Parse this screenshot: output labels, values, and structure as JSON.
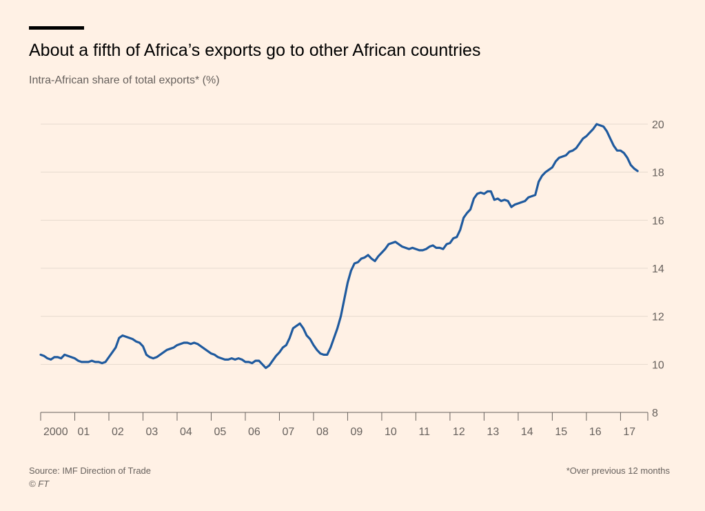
{
  "header": {
    "title": "About a fifth of Africa’s exports go to other African countries",
    "subtitle": "Intra-African share of total exports* (%)"
  },
  "footer": {
    "source": "Source: IMF Direction of Trade",
    "copyright": "© FT",
    "footnote": "*Over previous 12 months"
  },
  "colors": {
    "background": "#fff1e5",
    "line": "#1f5a9e",
    "grid": "#e6d9ce",
    "axis": "#66605c"
  },
  "chart_data": {
    "type": "line",
    "title": "About a fifth of Africa’s exports go to other African countries",
    "ylabel": "Intra-African share of total exports* (%)",
    "xlabel": "",
    "ylim": [
      8,
      20
    ],
    "xlim": [
      2000,
      2017.8
    ],
    "yticks": [
      8,
      10,
      12,
      14,
      16,
      18,
      20
    ],
    "xtick_labels": [
      {
        "x": 2000,
        "label": "2000"
      },
      {
        "x": 2001,
        "label": "01"
      },
      {
        "x": 2002,
        "label": "02"
      },
      {
        "x": 2003,
        "label": "03"
      },
      {
        "x": 2004,
        "label": "04"
      },
      {
        "x": 2005,
        "label": "05"
      },
      {
        "x": 2006,
        "label": "06"
      },
      {
        "x": 2007,
        "label": "07"
      },
      {
        "x": 2008,
        "label": "08"
      },
      {
        "x": 2009,
        "label": "09"
      },
      {
        "x": 2010,
        "label": "10"
      },
      {
        "x": 2011,
        "label": "11"
      },
      {
        "x": 2012,
        "label": "12"
      },
      {
        "x": 2013,
        "label": "13"
      },
      {
        "x": 2014,
        "label": "14"
      },
      {
        "x": 2015,
        "label": "15"
      },
      {
        "x": 2016,
        "label": "16"
      },
      {
        "x": 2017,
        "label": "17"
      }
    ],
    "grid": true,
    "y_axis_position": "right",
    "series": [
      {
        "values": [
          [
            2000.0,
            10.4
          ],
          [
            2000.1,
            10.35
          ],
          [
            2000.2,
            10.25
          ],
          [
            2000.3,
            10.2
          ],
          [
            2000.4,
            10.3
          ],
          [
            2000.5,
            10.3
          ],
          [
            2000.6,
            10.25
          ],
          [
            2000.7,
            10.4
          ],
          [
            2000.8,
            10.35
          ],
          [
            2000.9,
            10.3
          ],
          [
            2001.0,
            10.25
          ],
          [
            2001.1,
            10.15
          ],
          [
            2001.2,
            10.1
          ],
          [
            2001.3,
            10.1
          ],
          [
            2001.4,
            10.1
          ],
          [
            2001.5,
            10.15
          ],
          [
            2001.6,
            10.1
          ],
          [
            2001.7,
            10.1
          ],
          [
            2001.8,
            10.05
          ],
          [
            2001.9,
            10.1
          ],
          [
            2002.0,
            10.3
          ],
          [
            2002.1,
            10.5
          ],
          [
            2002.2,
            10.7
          ],
          [
            2002.3,
            11.1
          ],
          [
            2002.4,
            11.2
          ],
          [
            2002.5,
            11.15
          ],
          [
            2002.6,
            11.1
          ],
          [
            2002.7,
            11.05
          ],
          [
            2002.8,
            10.95
          ],
          [
            2002.9,
            10.9
          ],
          [
            2003.0,
            10.75
          ],
          [
            2003.1,
            10.4
          ],
          [
            2003.2,
            10.3
          ],
          [
            2003.3,
            10.25
          ],
          [
            2003.4,
            10.3
          ],
          [
            2003.5,
            10.4
          ],
          [
            2003.6,
            10.5
          ],
          [
            2003.7,
            10.6
          ],
          [
            2003.8,
            10.65
          ],
          [
            2003.9,
            10.7
          ],
          [
            2004.0,
            10.8
          ],
          [
            2004.1,
            10.85
          ],
          [
            2004.2,
            10.9
          ],
          [
            2004.3,
            10.9
          ],
          [
            2004.4,
            10.85
          ],
          [
            2004.5,
            10.9
          ],
          [
            2004.6,
            10.85
          ],
          [
            2004.7,
            10.75
          ],
          [
            2004.8,
            10.65
          ],
          [
            2004.9,
            10.55
          ],
          [
            2005.0,
            10.45
          ],
          [
            2005.1,
            10.4
          ],
          [
            2005.2,
            10.3
          ],
          [
            2005.3,
            10.25
          ],
          [
            2005.4,
            10.2
          ],
          [
            2005.5,
            10.2
          ],
          [
            2005.6,
            10.25
          ],
          [
            2005.7,
            10.2
          ],
          [
            2005.8,
            10.25
          ],
          [
            2005.9,
            10.2
          ],
          [
            2006.0,
            10.1
          ],
          [
            2006.1,
            10.1
          ],
          [
            2006.2,
            10.05
          ],
          [
            2006.3,
            10.15
          ],
          [
            2006.4,
            10.15
          ],
          [
            2006.5,
            10.0
          ],
          [
            2006.6,
            9.85
          ],
          [
            2006.7,
            9.95
          ],
          [
            2006.8,
            10.15
          ],
          [
            2006.9,
            10.35
          ],
          [
            2007.0,
            10.5
          ],
          [
            2007.1,
            10.7
          ],
          [
            2007.2,
            10.8
          ],
          [
            2007.3,
            11.1
          ],
          [
            2007.4,
            11.5
          ],
          [
            2007.5,
            11.6
          ],
          [
            2007.6,
            11.7
          ],
          [
            2007.7,
            11.5
          ],
          [
            2007.8,
            11.2
          ],
          [
            2007.9,
            11.05
          ],
          [
            2008.0,
            10.8
          ],
          [
            2008.1,
            10.6
          ],
          [
            2008.2,
            10.45
          ],
          [
            2008.3,
            10.4
          ],
          [
            2008.4,
            10.4
          ],
          [
            2008.5,
            10.7
          ],
          [
            2008.6,
            11.1
          ],
          [
            2008.7,
            11.5
          ],
          [
            2008.8,
            12.0
          ],
          [
            2008.9,
            12.7
          ],
          [
            2009.0,
            13.4
          ],
          [
            2009.1,
            13.9
          ],
          [
            2009.2,
            14.2
          ],
          [
            2009.3,
            14.25
          ],
          [
            2009.4,
            14.4
          ],
          [
            2009.5,
            14.45
          ],
          [
            2009.6,
            14.55
          ],
          [
            2009.7,
            14.4
          ],
          [
            2009.8,
            14.3
          ],
          [
            2009.9,
            14.5
          ],
          [
            2010.0,
            14.65
          ],
          [
            2010.1,
            14.8
          ],
          [
            2010.2,
            15.0
          ],
          [
            2010.3,
            15.05
          ],
          [
            2010.4,
            15.1
          ],
          [
            2010.5,
            15.0
          ],
          [
            2010.6,
            14.9
          ],
          [
            2010.7,
            14.85
          ],
          [
            2010.8,
            14.8
          ],
          [
            2010.9,
            14.85
          ],
          [
            2011.0,
            14.8
          ],
          [
            2011.1,
            14.75
          ],
          [
            2011.2,
            14.75
          ],
          [
            2011.3,
            14.8
          ],
          [
            2011.4,
            14.9
          ],
          [
            2011.5,
            14.95
          ],
          [
            2011.6,
            14.85
          ],
          [
            2011.7,
            14.85
          ],
          [
            2011.8,
            14.8
          ],
          [
            2011.9,
            15.0
          ],
          [
            2012.0,
            15.05
          ],
          [
            2012.1,
            15.25
          ],
          [
            2012.2,
            15.3
          ],
          [
            2012.3,
            15.6
          ],
          [
            2012.4,
            16.1
          ],
          [
            2012.5,
            16.3
          ],
          [
            2012.6,
            16.45
          ],
          [
            2012.7,
            16.9
          ],
          [
            2012.8,
            17.1
          ],
          [
            2012.9,
            17.15
          ],
          [
            2013.0,
            17.1
          ],
          [
            2013.1,
            17.2
          ],
          [
            2013.2,
            17.2
          ],
          [
            2013.3,
            16.85
          ],
          [
            2013.4,
            16.9
          ],
          [
            2013.5,
            16.8
          ],
          [
            2013.6,
            16.85
          ],
          [
            2013.7,
            16.8
          ],
          [
            2013.8,
            16.55
          ],
          [
            2013.9,
            16.65
          ],
          [
            2014.0,
            16.7
          ],
          [
            2014.1,
            16.75
          ],
          [
            2014.2,
            16.8
          ],
          [
            2014.3,
            16.95
          ],
          [
            2014.4,
            17.0
          ],
          [
            2014.5,
            17.05
          ],
          [
            2014.6,
            17.6
          ],
          [
            2014.7,
            17.85
          ],
          [
            2014.8,
            18.0
          ],
          [
            2014.9,
            18.1
          ],
          [
            2015.0,
            18.2
          ],
          [
            2015.1,
            18.45
          ],
          [
            2015.2,
            18.6
          ],
          [
            2015.3,
            18.65
          ],
          [
            2015.4,
            18.7
          ],
          [
            2015.5,
            18.85
          ],
          [
            2015.6,
            18.9
          ],
          [
            2015.7,
            19.0
          ],
          [
            2015.8,
            19.2
          ],
          [
            2015.9,
            19.4
          ],
          [
            2016.0,
            19.5
          ],
          [
            2016.1,
            19.65
          ],
          [
            2016.2,
            19.8
          ],
          [
            2016.3,
            20.0
          ],
          [
            2016.4,
            19.95
          ],
          [
            2016.5,
            19.9
          ],
          [
            2016.6,
            19.7
          ],
          [
            2016.7,
            19.4
          ],
          [
            2016.8,
            19.1
          ],
          [
            2016.9,
            18.9
          ],
          [
            2017.0,
            18.9
          ],
          [
            2017.1,
            18.8
          ],
          [
            2017.2,
            18.6
          ],
          [
            2017.3,
            18.3
          ],
          [
            2017.4,
            18.15
          ],
          [
            2017.5,
            18.05
          ]
        ]
      }
    ]
  }
}
